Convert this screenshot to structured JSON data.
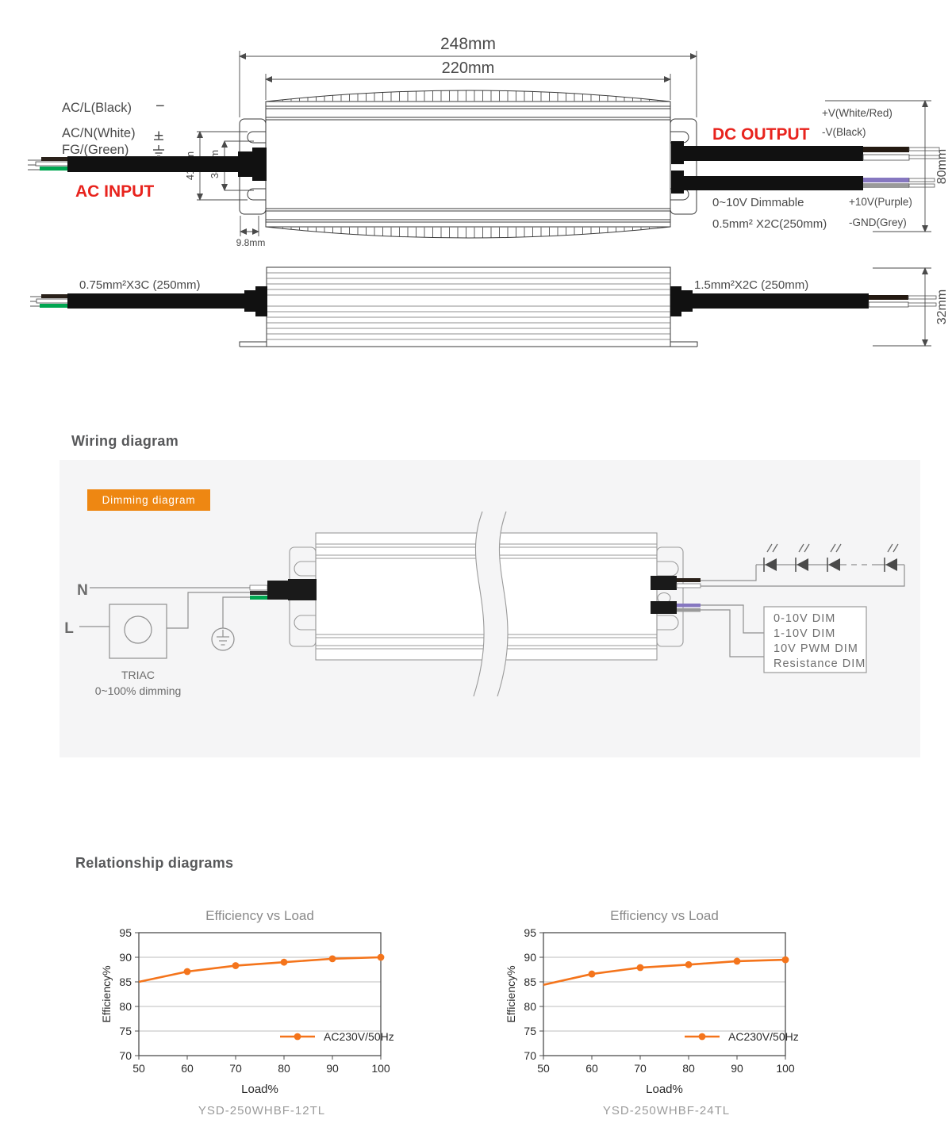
{
  "colors": {
    "red": "#e8231d",
    "orange_badge": "#ee8712",
    "chart_line": "#f4741b",
    "panel_bg": "#f5f5f6",
    "green_wire": "#00a651",
    "purple_wire": "#8677c0",
    "grey_wire": "#9a9a9a"
  },
  "mechanical": {
    "dims": {
      "overall": "248mm",
      "body": "220mm",
      "height": "80mm",
      "side_height": "32mm",
      "slot_outer": "41mm",
      "slot_inner": "38mm",
      "plate_offset": "9.8mm"
    },
    "ac_input_label": "AC INPUT",
    "ac_wires": [
      {
        "label": "AC/L(Black)",
        "sym": "−"
      },
      {
        "label": "AC/N(White)",
        "sym": "+"
      },
      {
        "label": "FG/(Green)"
      }
    ],
    "dc_output_label": "DC OUTPUT",
    "dc_wires": [
      "+V(White/Red)",
      "-V(Black)"
    ],
    "dim_note_line1": "0~10V  Dimmable",
    "dim_note_line2": "0.5mm² X2C(250mm)",
    "dim_wires": [
      "+10V(Purple)",
      "-GND(Grey)"
    ],
    "input_cable": "0.75mm²X3C (250mm)",
    "output_cable": "1.5mm²X2C (250mm)"
  },
  "wiring": {
    "heading": "Wiring diagram",
    "badge": "Dimming diagram",
    "neutral": "N",
    "live": "L",
    "triac_name": "TRIAC",
    "triac_desc": "0~100% dimming",
    "dim_modes": [
      "0-10V DIM",
      "1-10V DIM",
      "10V PWM DIM",
      "Resistance DIM"
    ]
  },
  "relationship_heading": "Relationship diagrams",
  "chart_data": [
    {
      "type": "line",
      "title": "Efficiency vs Load",
      "xlabel": "Load%",
      "ylabel": "Efficiency%",
      "x": [
        50,
        60,
        70,
        80,
        90,
        100
      ],
      "series": [
        {
          "name": "AC230V/50Hz",
          "values": [
            85,
            87.1,
            88.3,
            89,
            89.7,
            90
          ]
        }
      ],
      "xlim": [
        50,
        100
      ],
      "ylim": [
        70,
        95
      ],
      "xtick_step": 10,
      "ytick_step": 5,
      "grid": true,
      "legend_position": "bottom-right",
      "caption": "YSD-250WHBF-12TL",
      "line_color": "#f4741b"
    },
    {
      "type": "line",
      "title": "Efficiency vs Load",
      "xlabel": "Load%",
      "ylabel": "Efficiency%",
      "x": [
        50,
        60,
        70,
        80,
        90,
        100
      ],
      "series": [
        {
          "name": "AC230V/50Hz",
          "values": [
            84.4,
            86.6,
            87.9,
            88.5,
            89.2,
            89.5
          ]
        }
      ],
      "xlim": [
        50,
        100
      ],
      "ylim": [
        70,
        95
      ],
      "xtick_step": 10,
      "ytick_step": 5,
      "grid": true,
      "legend_position": "bottom-right",
      "caption": "YSD-250WHBF-24TL",
      "line_color": "#f4741b"
    }
  ]
}
